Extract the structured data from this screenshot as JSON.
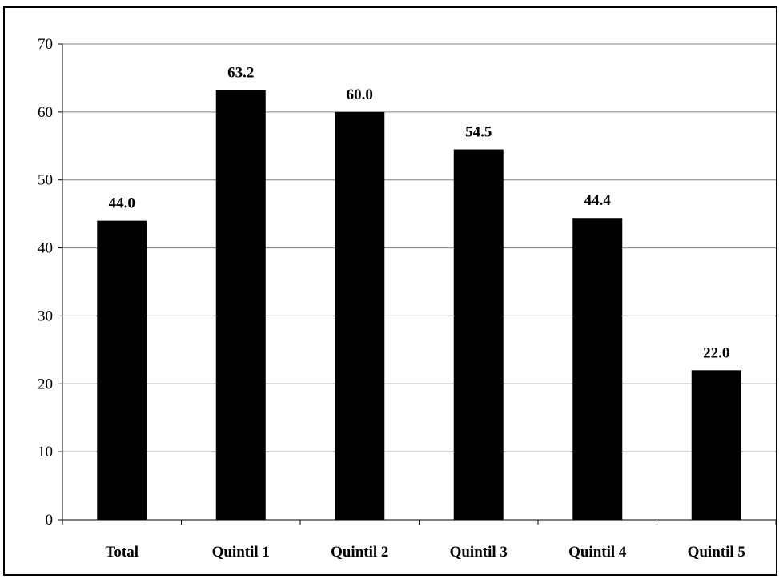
{
  "chart_data": {
    "type": "bar",
    "title": "",
    "xlabel": "",
    "ylabel": "",
    "categories": [
      "Total",
      "Quintil 1",
      "Quintil 2",
      "Quintil 3",
      "Quintil 4",
      "Quintil 5"
    ],
    "values": [
      44.0,
      63.2,
      60.0,
      54.5,
      44.4,
      22.0
    ],
    "data_labels": [
      "44.0",
      "63.2",
      "60.0",
      "54.5",
      "44.4",
      "22.0"
    ],
    "ylim": [
      0,
      70
    ],
    "yticks": [
      0,
      10,
      20,
      30,
      40,
      50,
      60,
      70
    ],
    "grid": true,
    "legend": "none",
    "colors": {
      "bar": "#000000",
      "grid": "#808080",
      "axis": "#000000",
      "background": "#ffffff",
      "border": "#000000"
    }
  }
}
